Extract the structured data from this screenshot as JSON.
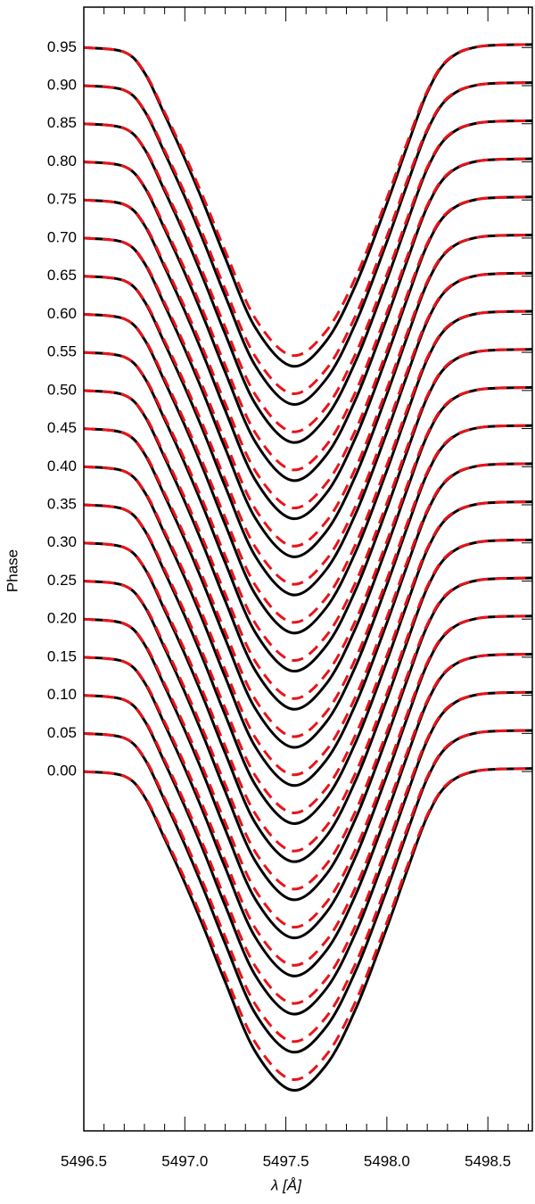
{
  "chart_data": {
    "type": "line",
    "xlabel": "λ [Å]",
    "ylabel": "Phase",
    "x": [
      5496.5,
      5496.7,
      5496.8,
      5496.9,
      5497.0,
      5497.1,
      5497.2,
      5497.35,
      5497.53,
      5497.7,
      5497.85,
      5498.0,
      5498.1,
      5498.2,
      5498.3,
      5498.45,
      5498.72
    ],
    "xlim": [
      5496.5,
      5498.72
    ],
    "xticks": [
      5496.5,
      {
        "value": 5497.0,
        "label": "5497.0"
      },
      5497.5,
      {
        "value": 5498.0,
        "label": "5498.0"
      },
      5498.5
    ],
    "xminorticks": [
      5496.6,
      5496.7,
      5496.8,
      5496.9,
      5497.1,
      5497.2,
      5497.3,
      5497.4,
      5497.6,
      5497.7,
      5497.8,
      5497.9,
      5498.1,
      5498.2,
      5498.3,
      5498.4,
      5498.6,
      5498.7
    ],
    "ylim": [
      -0.4715,
      1.003
    ],
    "yticks": [
      {
        "value": 0,
        "label": "0.00"
      },
      0.05,
      {
        "value": 0.1,
        "label": "0.10"
      },
      0.15,
      {
        "value": 0.2,
        "label": "0.20"
      },
      0.25,
      {
        "value": 0.3,
        "label": "0.30"
      },
      0.35,
      {
        "value": 0.4,
        "label": "0.40"
      },
      0.45,
      {
        "value": 0.5,
        "label": "0.50"
      },
      0.55,
      {
        "value": 0.6,
        "label": "0.60"
      },
      0.65,
      {
        "value": 0.7,
        "label": "0.70"
      },
      0.75,
      {
        "value": 0.8,
        "label": "0.80"
      },
      0.85,
      {
        "value": 0.9,
        "label": "0.90"
      },
      0.95
    ],
    "series": [
      {
        "color": "#000000",
        "style": "solid",
        "values": [
          0,
          -0.006,
          -0.033,
          -0.088,
          -0.146,
          -0.209,
          -0.276,
          -0.368,
          -0.418,
          -0.385,
          -0.309,
          -0.205,
          -0.13,
          -0.059,
          -0.017,
          0.001,
          0.004
        ]
      },
      {
        "color": "#e8141b",
        "style": "dashed",
        "values": [
          0,
          -0.006,
          -0.032,
          -0.085,
          -0.141,
          -0.202,
          -0.267,
          -0.356,
          -0.404,
          -0.372,
          -0.299,
          -0.198,
          -0.125,
          -0.057,
          -0.016,
          0.001,
          0.004
        ]
      },
      {
        "color": "#000000",
        "style": "solid",
        "values": [
          0.05,
          0.044,
          0.017,
          -0.038,
          -0.096,
          -0.159,
          -0.226,
          -0.318,
          -0.368,
          -0.335,
          -0.259,
          -0.155,
          -0.08,
          -0.009,
          0.033,
          0.051,
          0.054
        ]
      },
      {
        "color": "#e8141b",
        "style": "dashed",
        "values": [
          0.05,
          0.044,
          0.018,
          -0.035,
          -0.091,
          -0.152,
          -0.217,
          -0.306,
          -0.354,
          -0.322,
          -0.249,
          -0.148,
          -0.075,
          -0.007,
          0.034,
          0.051,
          0.054
        ]
      },
      {
        "color": "#000000",
        "style": "solid",
        "values": [
          0.1,
          0.094,
          0.067,
          0.012,
          -0.046,
          -0.109,
          -0.176,
          -0.268,
          -0.318,
          -0.285,
          -0.209,
          -0.105,
          -0.03,
          0.041,
          0.083,
          0.101,
          0.104
        ]
      },
      {
        "color": "#e8141b",
        "style": "dashed",
        "values": [
          0.1,
          0.094,
          0.068,
          0.015,
          -0.041,
          -0.102,
          -0.167,
          -0.256,
          -0.304,
          -0.272,
          -0.199,
          -0.098,
          -0.025,
          0.043,
          0.084,
          0.101,
          0.104
        ]
      },
      {
        "color": "#000000",
        "style": "solid",
        "values": [
          0.15,
          0.144,
          0.117,
          0.062,
          0.004,
          -0.059,
          -0.126,
          -0.218,
          -0.268,
          -0.235,
          -0.159,
          -0.055,
          0.02,
          0.091,
          0.133,
          0.151,
          0.154
        ]
      },
      {
        "color": "#e8141b",
        "style": "dashed",
        "values": [
          0.15,
          0.144,
          0.118,
          0.065,
          0.009,
          -0.052,
          -0.117,
          -0.206,
          -0.254,
          -0.222,
          -0.149,
          -0.048,
          0.025,
          0.093,
          0.134,
          0.151,
          0.154
        ]
      },
      {
        "color": "#000000",
        "style": "solid",
        "values": [
          0.2,
          0.194,
          0.167,
          0.112,
          0.054,
          -0.009,
          -0.076,
          -0.168,
          -0.218,
          -0.185,
          -0.109,
          -0.005,
          0.07,
          0.141,
          0.183,
          0.201,
          0.204
        ]
      },
      {
        "color": "#e8141b",
        "style": "dashed",
        "values": [
          0.2,
          0.194,
          0.168,
          0.115,
          0.059,
          -0.002,
          -0.067,
          -0.156,
          -0.204,
          -0.172,
          -0.099,
          0.002,
          0.075,
          0.143,
          0.184,
          0.201,
          0.204
        ]
      },
      {
        "color": "#000000",
        "style": "solid",
        "values": [
          0.25,
          0.244,
          0.217,
          0.162,
          0.104,
          0.041,
          -0.026,
          -0.118,
          -0.168,
          -0.135,
          -0.059,
          0.045,
          0.12,
          0.191,
          0.233,
          0.251,
          0.254
        ]
      },
      {
        "color": "#e8141b",
        "style": "dashed",
        "values": [
          0.25,
          0.244,
          0.218,
          0.165,
          0.109,
          0.048,
          -0.017,
          -0.106,
          -0.154,
          -0.122,
          -0.049,
          0.052,
          0.125,
          0.193,
          0.234,
          0.251,
          0.254
        ]
      },
      {
        "color": "#000000",
        "style": "solid",
        "values": [
          0.3,
          0.294,
          0.267,
          0.212,
          0.154,
          0.091,
          0.024,
          -0.068,
          -0.118,
          -0.085,
          -0.009,
          0.095,
          0.17,
          0.241,
          0.283,
          0.301,
          0.304
        ]
      },
      {
        "color": "#e8141b",
        "style": "dashed",
        "values": [
          0.3,
          0.294,
          0.268,
          0.215,
          0.159,
          0.098,
          0.033,
          -0.056,
          -0.104,
          -0.072,
          0.001,
          0.102,
          0.175,
          0.243,
          0.284,
          0.301,
          0.304
        ]
      },
      {
        "color": "#000000",
        "style": "solid",
        "values": [
          0.35,
          0.344,
          0.317,
          0.262,
          0.204,
          0.141,
          0.074,
          -0.018,
          -0.068,
          -0.035,
          0.041,
          0.145,
          0.22,
          0.291,
          0.333,
          0.351,
          0.354
        ]
      },
      {
        "color": "#e8141b",
        "style": "dashed",
        "values": [
          0.35,
          0.344,
          0.318,
          0.265,
          0.209,
          0.148,
          0.083,
          -0.006,
          -0.054,
          -0.022,
          0.051,
          0.152,
          0.225,
          0.293,
          0.334,
          0.351,
          0.354
        ]
      },
      {
        "color": "#000000",
        "style": "solid",
        "values": [
          0.4,
          0.394,
          0.367,
          0.312,
          0.254,
          0.191,
          0.124,
          0.032,
          -0.018,
          0.015,
          0.091,
          0.195,
          0.27,
          0.341,
          0.383,
          0.401,
          0.404
        ]
      },
      {
        "color": "#e8141b",
        "style": "dashed",
        "values": [
          0.4,
          0.394,
          0.368,
          0.315,
          0.259,
          0.198,
          0.133,
          0.044,
          -0.004,
          0.028,
          0.101,
          0.202,
          0.275,
          0.343,
          0.384,
          0.401,
          0.404
        ]
      },
      {
        "color": "#000000",
        "style": "solid",
        "values": [
          0.45,
          0.444,
          0.417,
          0.362,
          0.304,
          0.241,
          0.174,
          0.082,
          0.032,
          0.065,
          0.141,
          0.245,
          0.32,
          0.391,
          0.433,
          0.451,
          0.454
        ]
      },
      {
        "color": "#e8141b",
        "style": "dashed",
        "values": [
          0.45,
          0.444,
          0.418,
          0.365,
          0.309,
          0.248,
          0.183,
          0.094,
          0.046,
          0.078,
          0.151,
          0.252,
          0.325,
          0.393,
          0.434,
          0.451,
          0.454
        ]
      },
      {
        "color": "#000000",
        "style": "solid",
        "values": [
          0.5,
          0.494,
          0.467,
          0.412,
          0.354,
          0.291,
          0.224,
          0.132,
          0.082,
          0.115,
          0.191,
          0.295,
          0.37,
          0.441,
          0.483,
          0.501,
          0.504
        ]
      },
      {
        "color": "#e8141b",
        "style": "dashed",
        "values": [
          0.5,
          0.494,
          0.468,
          0.415,
          0.359,
          0.298,
          0.233,
          0.144,
          0.096,
          0.128,
          0.201,
          0.302,
          0.375,
          0.443,
          0.484,
          0.501,
          0.504
        ]
      },
      {
        "color": "#000000",
        "style": "solid",
        "values": [
          0.55,
          0.544,
          0.517,
          0.462,
          0.404,
          0.341,
          0.274,
          0.182,
          0.132,
          0.165,
          0.241,
          0.345,
          0.42,
          0.491,
          0.533,
          0.551,
          0.554
        ]
      },
      {
        "color": "#e8141b",
        "style": "dashed",
        "values": [
          0.55,
          0.544,
          0.518,
          0.465,
          0.409,
          0.348,
          0.283,
          0.194,
          0.146,
          0.178,
          0.251,
          0.352,
          0.425,
          0.493,
          0.534,
          0.551,
          0.554
        ]
      },
      {
        "color": "#000000",
        "style": "solid",
        "values": [
          0.6,
          0.594,
          0.567,
          0.512,
          0.454,
          0.391,
          0.324,
          0.232,
          0.182,
          0.215,
          0.291,
          0.395,
          0.47,
          0.541,
          0.583,
          0.601,
          0.604
        ]
      },
      {
        "color": "#e8141b",
        "style": "dashed",
        "values": [
          0.6,
          0.594,
          0.568,
          0.515,
          0.459,
          0.398,
          0.333,
          0.244,
          0.196,
          0.228,
          0.301,
          0.402,
          0.475,
          0.543,
          0.584,
          0.601,
          0.604
        ]
      },
      {
        "color": "#000000",
        "style": "solid",
        "values": [
          0.65,
          0.644,
          0.617,
          0.562,
          0.504,
          0.441,
          0.374,
          0.282,
          0.232,
          0.265,
          0.341,
          0.445,
          0.52,
          0.591,
          0.633,
          0.651,
          0.654
        ]
      },
      {
        "color": "#e8141b",
        "style": "dashed",
        "values": [
          0.65,
          0.644,
          0.618,
          0.565,
          0.509,
          0.448,
          0.383,
          0.294,
          0.246,
          0.278,
          0.351,
          0.452,
          0.525,
          0.593,
          0.634,
          0.651,
          0.654
        ]
      },
      {
        "color": "#000000",
        "style": "solid",
        "values": [
          0.7,
          0.694,
          0.667,
          0.612,
          0.554,
          0.491,
          0.424,
          0.332,
          0.282,
          0.315,
          0.391,
          0.495,
          0.57,
          0.641,
          0.683,
          0.701,
          0.704
        ]
      },
      {
        "color": "#e8141b",
        "style": "dashed",
        "values": [
          0.7,
          0.694,
          0.668,
          0.615,
          0.559,
          0.498,
          0.433,
          0.344,
          0.296,
          0.328,
          0.401,
          0.502,
          0.575,
          0.643,
          0.684,
          0.701,
          0.704
        ]
      },
      {
        "color": "#000000",
        "style": "solid",
        "values": [
          0.75,
          0.744,
          0.717,
          0.662,
          0.604,
          0.541,
          0.474,
          0.382,
          0.332,
          0.365,
          0.441,
          0.545,
          0.62,
          0.691,
          0.733,
          0.751,
          0.754
        ]
      },
      {
        "color": "#e8141b",
        "style": "dashed",
        "values": [
          0.75,
          0.744,
          0.718,
          0.665,
          0.609,
          0.548,
          0.483,
          0.394,
          0.346,
          0.378,
          0.451,
          0.552,
          0.625,
          0.693,
          0.734,
          0.751,
          0.754
        ]
      },
      {
        "color": "#000000",
        "style": "solid",
        "values": [
          0.8,
          0.794,
          0.767,
          0.712,
          0.654,
          0.591,
          0.524,
          0.432,
          0.382,
          0.415,
          0.491,
          0.595,
          0.67,
          0.741,
          0.783,
          0.801,
          0.804
        ]
      },
      {
        "color": "#e8141b",
        "style": "dashed",
        "values": [
          0.8,
          0.794,
          0.768,
          0.715,
          0.659,
          0.598,
          0.533,
          0.444,
          0.396,
          0.428,
          0.501,
          0.602,
          0.675,
          0.743,
          0.784,
          0.801,
          0.804
        ]
      },
      {
        "color": "#000000",
        "style": "solid",
        "values": [
          0.85,
          0.844,
          0.817,
          0.762,
          0.704,
          0.641,
          0.574,
          0.482,
          0.432,
          0.465,
          0.541,
          0.645,
          0.72,
          0.791,
          0.833,
          0.851,
          0.854
        ]
      },
      {
        "color": "#e8141b",
        "style": "dashed",
        "values": [
          0.85,
          0.844,
          0.818,
          0.765,
          0.709,
          0.648,
          0.583,
          0.494,
          0.446,
          0.478,
          0.551,
          0.652,
          0.725,
          0.793,
          0.834,
          0.851,
          0.854
        ]
      },
      {
        "color": "#000000",
        "style": "solid",
        "values": [
          0.9,
          0.894,
          0.867,
          0.812,
          0.754,
          0.691,
          0.624,
          0.532,
          0.482,
          0.515,
          0.591,
          0.695,
          0.77,
          0.841,
          0.883,
          0.901,
          0.904
        ]
      },
      {
        "color": "#e8141b",
        "style": "dashed",
        "values": [
          0.9,
          0.894,
          0.868,
          0.815,
          0.759,
          0.698,
          0.633,
          0.544,
          0.496,
          0.528,
          0.601,
          0.702,
          0.775,
          0.843,
          0.884,
          0.901,
          0.904
        ]
      },
      {
        "color": "#000000",
        "style": "solid",
        "values": [
          0.95,
          0.944,
          0.917,
          0.862,
          0.804,
          0.741,
          0.674,
          0.582,
          0.532,
          0.565,
          0.641,
          0.745,
          0.82,
          0.891,
          0.933,
          0.951,
          0.954
        ]
      },
      {
        "color": "#e8141b",
        "style": "dashed",
        "values": [
          0.95,
          0.944,
          0.918,
          0.865,
          0.809,
          0.748,
          0.683,
          0.594,
          0.546,
          0.578,
          0.651,
          0.752,
          0.825,
          0.893,
          0.934,
          0.951,
          0.954
        ]
      }
    ]
  }
}
